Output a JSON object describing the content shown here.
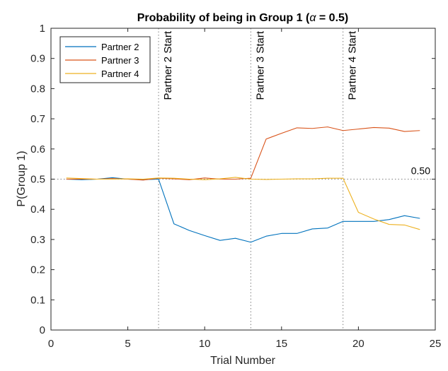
{
  "chart_data": {
    "type": "line",
    "title_prefix": "Probability of being in Group 1 (",
    "title_symbol": "α",
    "title_suffix": " = 0.5)",
    "xlabel": "Trial Number",
    "ylabel": "P(Group 1)",
    "xlim": [
      0,
      25
    ],
    "ylim": [
      0,
      1
    ],
    "xticks": [
      0,
      5,
      10,
      15,
      20,
      25
    ],
    "yticks": [
      0,
      0.1,
      0.2,
      0.3,
      0.4,
      0.5,
      0.6,
      0.7,
      0.8,
      0.9,
      1
    ],
    "ytick_labels": [
      "0",
      "0.1",
      "0.2",
      "0.3",
      "0.4",
      "0.5",
      "0.6",
      "0.7",
      "0.8",
      "0.9",
      "1"
    ],
    "grid": false,
    "legend_position": "top-left",
    "x": [
      1,
      2,
      3,
      4,
      5,
      6,
      7,
      8,
      9,
      10,
      11,
      12,
      13,
      14,
      15,
      16,
      17,
      18,
      19,
      20,
      21,
      22,
      23,
      24
    ],
    "series": [
      {
        "name": "Partner 2",
        "color": "#0072BD",
        "values": [
          0.5,
          0.498,
          0.5,
          0.505,
          0.5,
          0.498,
          0.5,
          0.352,
          0.33,
          0.313,
          0.297,
          0.304,
          0.291,
          0.311,
          0.32,
          0.32,
          0.335,
          0.338,
          0.36,
          0.36,
          0.36,
          0.366,
          0.379,
          0.37
        ]
      },
      {
        "name": "Partner 3",
        "color": "#D95319",
        "values": [
          0.5,
          0.5,
          0.5,
          0.502,
          0.5,
          0.497,
          0.503,
          0.501,
          0.498,
          0.504,
          0.5,
          0.5,
          0.503,
          0.633,
          0.652,
          0.67,
          0.668,
          0.673,
          0.661,
          0.666,
          0.671,
          0.669,
          0.658,
          0.661
        ]
      },
      {
        "name": "Partner 4",
        "color": "#EDB120",
        "values": [
          0.504,
          0.502,
          0.5,
          0.5,
          0.501,
          0.5,
          0.504,
          0.503,
          0.5,
          0.498,
          0.501,
          0.506,
          0.5,
          0.499,
          0.5,
          0.501,
          0.501,
          0.503,
          0.503,
          0.39,
          0.368,
          0.35,
          0.348,
          0.333
        ]
      }
    ],
    "vlines": [
      {
        "x": 7,
        "label": "Partner 2 Start"
      },
      {
        "x": 13,
        "label": "Partner 3 Start"
      },
      {
        "x": 19,
        "label": "Partner 4 Start"
      }
    ],
    "hline": {
      "y": 0.5,
      "label": "0.50"
    }
  }
}
